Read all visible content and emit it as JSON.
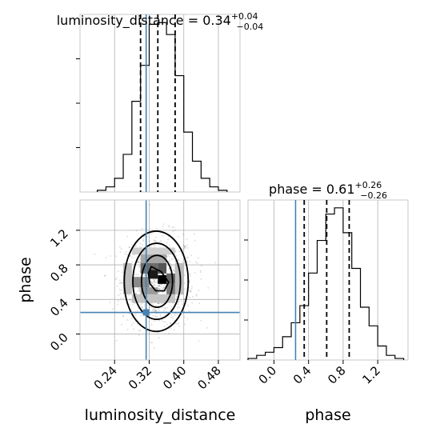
{
  "chart_data": {
    "type": "corner",
    "colors": {
      "truth": "#4682b4",
      "hist": "#000000",
      "grid": "#b0b0b0"
    },
    "parameters": [
      "luminosity_distance",
      "phase"
    ],
    "titles": {
      "luminosity_distance": {
        "name": "luminosity_distance",
        "median": "0.34",
        "plus": "+0.04",
        "minus": "−0.04"
      },
      "phase": {
        "name": "phase",
        "median": "0.61",
        "plus": "+0.26",
        "minus": "−0.26"
      }
    },
    "truths": {
      "luminosity_distance": 0.313,
      "phase": 0.25
    },
    "axes": {
      "luminosity_distance": {
        "label": "luminosity_distance",
        "range": [
          0.16,
          0.53
        ],
        "ticks": [
          0.24,
          0.32,
          0.4,
          0.48
        ],
        "tick_labels": [
          "0.24",
          "0.32",
          "0.40",
          "0.48"
        ]
      },
      "phase": {
        "label": "phase",
        "range": [
          -0.3,
          1.55
        ],
        "ticks": [
          0.0,
          0.4,
          0.8,
          1.2
        ],
        "tick_labels": [
          "0.0",
          "0.4",
          "0.8",
          "1.2"
        ]
      }
    },
    "marginals": {
      "luminosity_distance": {
        "bin_edges": [
          0.2,
          0.22,
          0.24,
          0.26,
          0.28,
          0.3,
          0.32,
          0.34,
          0.36,
          0.38,
          0.4,
          0.42,
          0.44,
          0.46,
          0.48,
          0.5
        ],
        "counts": [
          1,
          3,
          8,
          22,
          53,
          74,
          98,
          99,
          92,
          68,
          35,
          18,
          8,
          3,
          1
        ],
        "quantiles": [
          0.3,
          0.34,
          0.38
        ]
      },
      "phase": {
        "bin_edges": [
          -0.3,
          -0.2,
          -0.1,
          0.0,
          0.1,
          0.2,
          0.3,
          0.4,
          0.5,
          0.6,
          0.7,
          0.8,
          0.9,
          1.0,
          1.1,
          1.2,
          1.3,
          1.4,
          1.5
        ],
        "counts": [
          1,
          3,
          5,
          8,
          15,
          24,
          35,
          56,
          77,
          94,
          98,
          82,
          59,
          34,
          22,
          9,
          3,
          1
        ],
        "quantiles": [
          0.35,
          0.61,
          0.87
        ]
      }
    },
    "joint": {
      "x_center": 0.34,
      "y_center": 0.61,
      "density_cells": [
        {
          "x": 0.32,
          "y": 0.64,
          "w": 0.02,
          "h": 0.1,
          "shade": "#1a1a1a"
        },
        {
          "x": 0.34,
          "y": 0.58,
          "w": 0.02,
          "h": 0.1,
          "shade": "#000000"
        },
        {
          "x": 0.3,
          "y": 0.7,
          "w": 0.04,
          "h": 0.12,
          "shade": "#6b6b6b"
        },
        {
          "x": 0.34,
          "y": 0.7,
          "w": 0.02,
          "h": 0.12,
          "shade": "#555555"
        },
        {
          "x": 0.28,
          "y": 0.54,
          "w": 0.04,
          "h": 0.12,
          "shade": "#8a8a8a"
        },
        {
          "x": 0.36,
          "y": 0.46,
          "w": 0.02,
          "h": 0.12,
          "shade": "#7a7a7a"
        },
        {
          "x": 0.3,
          "y": 0.46,
          "w": 0.04,
          "h": 0.08,
          "shade": "#9a9a9a"
        },
        {
          "x": 0.36,
          "y": 0.58,
          "w": 0.02,
          "h": 0.12,
          "shade": "#666666"
        },
        {
          "x": 0.3,
          "y": 0.82,
          "w": 0.06,
          "h": 0.1,
          "shade": "#a6a6a6"
        },
        {
          "x": 0.26,
          "y": 0.46,
          "w": 0.02,
          "h": 0.36,
          "shade": "#bdbdbd"
        },
        {
          "x": 0.38,
          "y": 0.46,
          "w": 0.02,
          "h": 0.36,
          "shade": "#bdbdbd"
        },
        {
          "x": 0.28,
          "y": 0.36,
          "w": 0.1,
          "h": 0.1,
          "shade": "#c4c4c4"
        },
        {
          "x": 0.28,
          "y": 0.92,
          "w": 0.1,
          "h": 0.08,
          "shade": "#d0d0d0"
        }
      ],
      "contours": [
        {
          "rx": 0.018,
          "ry": 0.16,
          "rot": 0
        },
        {
          "rx": 0.036,
          "ry": 0.3,
          "rot": 0
        },
        {
          "rx": 0.055,
          "ry": 0.44,
          "rot": 0
        },
        {
          "rx": 0.074,
          "ry": 0.58,
          "rot": 0
        }
      ],
      "inner_contour": [
        [
          0.325,
          0.78
        ],
        [
          0.348,
          0.72
        ],
        [
          0.365,
          0.6
        ],
        [
          0.355,
          0.5
        ],
        [
          0.335,
          0.5
        ],
        [
          0.322,
          0.58
        ],
        [
          0.318,
          0.7
        ]
      ]
    }
  }
}
